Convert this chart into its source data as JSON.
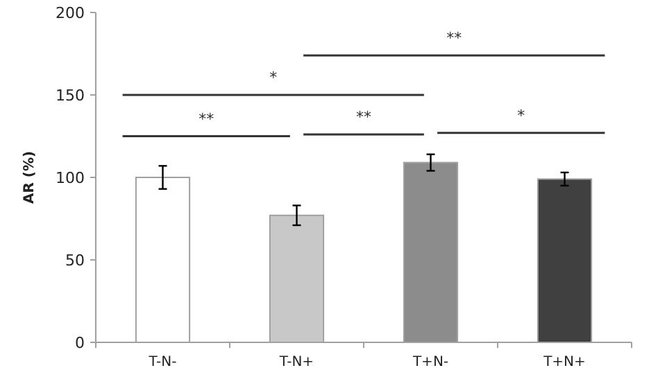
{
  "chart_data": {
    "type": "bar",
    "ylabel": "AR (%)",
    "categories": [
      "T-N-",
      "T-N+",
      "T+N-",
      "T+N+"
    ],
    "values": [
      100,
      77,
      109,
      99
    ],
    "colors": [
      "#ffffff",
      "#c8c8c8",
      "#8c8c8c",
      "#404040"
    ],
    "errors": [
      7,
      6,
      5,
      4
    ],
    "ylim": [
      0,
      200
    ],
    "yticks": [
      0,
      50,
      100,
      150,
      200
    ],
    "grid": false,
    "annotations": [
      "**",
      "*",
      "**",
      "**",
      "*"
    ]
  }
}
